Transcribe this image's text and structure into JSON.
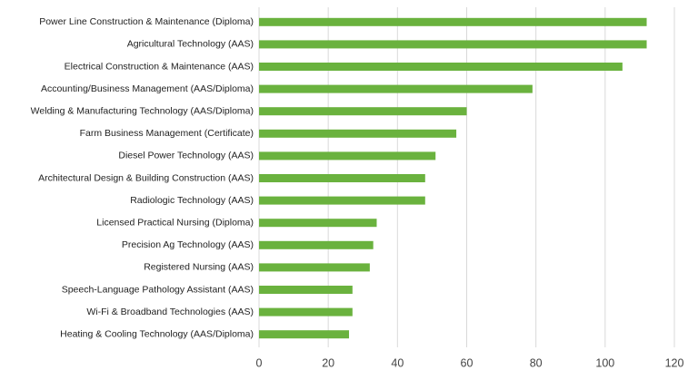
{
  "chart_data": {
    "type": "bar",
    "orientation": "horizontal",
    "categories": [
      "Power Line Construction & Maintenance (Diploma)",
      "Agricultural Technology (AAS)",
      "Electrical Construction & Maintenance (AAS)",
      "Accounting/Business Management (AAS/Diploma)",
      "Welding & Manufacturing Technology (AAS/Diploma)",
      "Farm Business Management (Certificate)",
      "Diesel Power Technology (AAS)",
      "Architectural Design & Building Construction (AAS)",
      "Radiologic Technology (AAS)",
      "Licensed Practical Nursing (Diploma)",
      "Precision Ag Technology (AAS)",
      "Registered Nursing (AAS)",
      "Speech-Language Pathology Assistant (AAS)",
      "Wi-Fi & Broadband Technologies (AAS)",
      "Heating & Cooling Technology (AAS/Diploma)"
    ],
    "values": [
      112,
      112,
      105,
      79,
      60,
      57,
      51,
      48,
      48,
      34,
      33,
      32,
      27,
      27,
      26
    ],
    "color": "#6ab23e",
    "xlim": [
      0,
      120
    ],
    "xticks": [
      0,
      20,
      40,
      60,
      80,
      100,
      120
    ],
    "grid": true
  }
}
